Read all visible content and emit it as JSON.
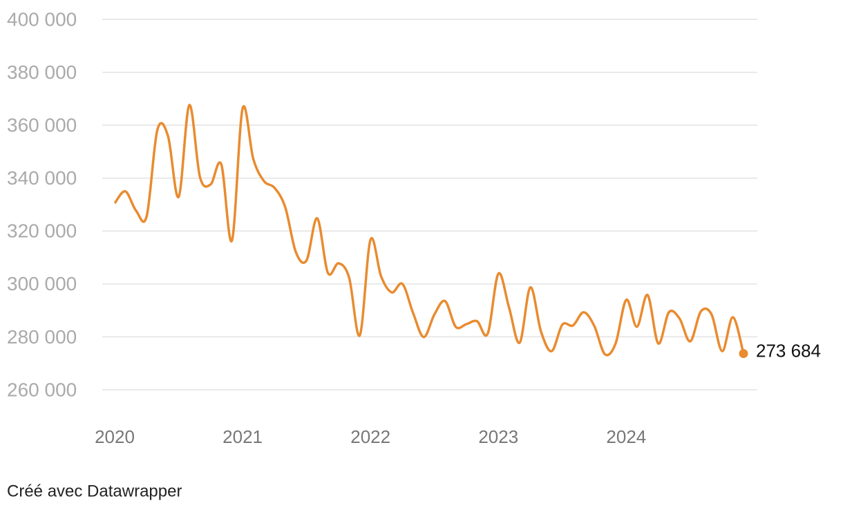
{
  "chart_data": {
    "type": "line",
    "categories": [
      "2020",
      null,
      null,
      null,
      null,
      null,
      null,
      null,
      null,
      null,
      null,
      null,
      "2021",
      null,
      null,
      null,
      null,
      null,
      null,
      null,
      null,
      null,
      null,
      null,
      "2022",
      null,
      null,
      null,
      null,
      null,
      null,
      null,
      null,
      null,
      null,
      null,
      "2023",
      null,
      null,
      null,
      null,
      null,
      null,
      null,
      null,
      null,
      null,
      null,
      "2024",
      null,
      null,
      null,
      null,
      null,
      null,
      null,
      null,
      null,
      null,
      null
    ],
    "series": [
      {
        "color": "#e98b30",
        "values": [
          330500,
          335000,
          327700,
          325600,
          358200,
          355900,
          332900,
          367600,
          340400,
          337600,
          345200,
          316400,
          366300,
          347300,
          338900,
          336300,
          329000,
          312000,
          308900,
          324800,
          304200,
          307800,
          302300,
          280600,
          316700,
          302800,
          296800,
          300000,
          289000,
          279900,
          288500,
          293500,
          283800,
          284800,
          285900,
          281200,
          303900,
          291100,
          277800,
          298700,
          282000,
          274600,
          284600,
          284300,
          289300,
          284100,
          273400,
          277500,
          294000,
          283800,
          295800,
          277500,
          289300,
          286900,
          278300,
          289600,
          288500,
          274600,
          287400,
          273684
        ],
        "value_labels": [
          null,
          null,
          null,
          null,
          null,
          null,
          null,
          null,
          null,
          null,
          null,
          null,
          null,
          null,
          null,
          null,
          null,
          null,
          null,
          null,
          null,
          null,
          null,
          null,
          null,
          null,
          null,
          null,
          null,
          null,
          null,
          null,
          null,
          null,
          null,
          null,
          null,
          null,
          null,
          null,
          null,
          null,
          null,
          null,
          null,
          null,
          null,
          null,
          null,
          null,
          null,
          null,
          null,
          null,
          null,
          null,
          null,
          null,
          null,
          "273 684"
        ]
      }
    ],
    "ylim": [
      260000,
      400000
    ],
    "yticks": [
      {
        "value": 260000,
        "label": "260 000"
      },
      {
        "value": 280000,
        "label": "280 000"
      },
      {
        "value": 300000,
        "label": "300 000"
      },
      {
        "value": 320000,
        "label": "320 000"
      },
      {
        "value": 340000,
        "label": "340 000"
      },
      {
        "value": 360000,
        "label": "360 000"
      },
      {
        "value": 380000,
        "label": "380 000"
      },
      {
        "value": 400000,
        "label": "400 000"
      }
    ],
    "grid": true,
    "footer": "Créé avec Datawrapper"
  }
}
